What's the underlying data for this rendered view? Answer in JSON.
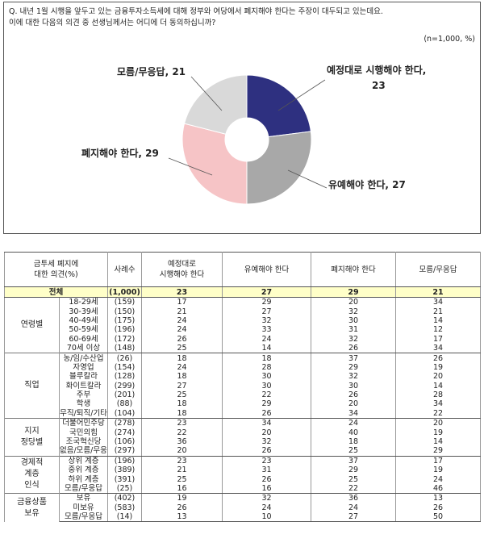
{
  "chart_data": {
    "type": "donut",
    "question": [
      "Q. 내년 1월 시행을 앞두고 있는 금융투자소득세에 대해 정부와 여당에서 폐지해야 한다는 주장이 대두되고 있는데요.",
      "이에 대한 다음의 의견 중 선생님께서는 어디에 더 동의하십니까?"
    ],
    "note": "(n=1,000, %)",
    "labels": [
      [
        "예정대로 시행해야 한다,",
        "23"
      ],
      [
        "유예해야 한다, 27"
      ],
      [
        "폐지해야 한다, 29"
      ],
      [
        "모름/무응답, 21"
      ]
    ],
    "values": [
      23,
      27,
      29,
      21
    ],
    "colors": [
      "#2e3080",
      "#a8a8a8",
      "#f6c4c6",
      "#d9d9d9"
    ]
  },
  "table": {
    "headers": [
      [
        "금투세 폐지에",
        "대한 의견(%)"
      ],
      [
        "사례수"
      ],
      [
        "예정대로",
        "시행해야 한다"
      ],
      [
        "유예해야 한다"
      ],
      [
        "폐지해야 한다"
      ],
      [
        "모름/무응답"
      ]
    ],
    "total": [
      "전체",
      "(1,000)",
      23,
      27,
      29,
      21
    ],
    "groups": [
      {
        "name": [
          "연령별"
        ],
        "rows": [
          [
            "18-29세",
            "(159)",
            17,
            29,
            20,
            34
          ],
          [
            "30-39세",
            "(150)",
            21,
            27,
            32,
            21
          ],
          [
            "40-49세",
            "(175)",
            24,
            32,
            30,
            14
          ],
          [
            "50-59세",
            "(196)",
            24,
            33,
            31,
            12
          ],
          [
            "60-69세",
            "(172)",
            26,
            24,
            32,
            17
          ],
          [
            "70세 이상",
            "(148)",
            25,
            14,
            26,
            34
          ]
        ]
      },
      {
        "name": [
          "직업"
        ],
        "rows": [
          [
            "농/임/수산업",
            "(26)",
            18,
            18,
            37,
            26
          ],
          [
            "자영업",
            "(154)",
            24,
            28,
            29,
            19
          ],
          [
            "블루칼라",
            "(128)",
            18,
            30,
            32,
            20
          ],
          [
            "화이트칼라",
            "(299)",
            27,
            30,
            30,
            14
          ],
          [
            "주부",
            "(201)",
            25,
            22,
            26,
            28
          ],
          [
            "학생",
            "(88)",
            18,
            29,
            20,
            34
          ],
          [
            "무직/퇴직/기타",
            "(104)",
            18,
            26,
            34,
            22
          ]
        ]
      },
      {
        "name": [
          "지지",
          "정당별"
        ],
        "rows": [
          [
            "더불어민주당",
            "(278)",
            23,
            34,
            24,
            20
          ],
          [
            "국민의힘",
            "(274)",
            22,
            20,
            40,
            19
          ],
          [
            "조국혁신당",
            "(106)",
            36,
            32,
            18,
            14
          ],
          [
            "없음/모름/무응답",
            "(297)",
            20,
            26,
            25,
            29
          ]
        ]
      },
      {
        "name": [
          "경제적",
          "계층",
          "인식"
        ],
        "rows": [
          [
            "상위 계층",
            "(196)",
            23,
            23,
            37,
            17
          ],
          [
            "중위 계층",
            "(389)",
            21,
            31,
            29,
            19
          ],
          [
            "하위 계층",
            "(391)",
            25,
            26,
            25,
            24
          ],
          [
            "모름/무응답",
            "(25)",
            16,
            16,
            22,
            46
          ]
        ]
      },
      {
        "name": [
          "금융상품",
          "보유"
        ],
        "rows": [
          [
            "보유",
            "(402)",
            19,
            32,
            36,
            13
          ],
          [
            "미보유",
            "(583)",
            26,
            24,
            24,
            26
          ],
          [
            "모름/무응답",
            "(14)",
            13,
            10,
            27,
            50
          ]
        ]
      }
    ]
  }
}
